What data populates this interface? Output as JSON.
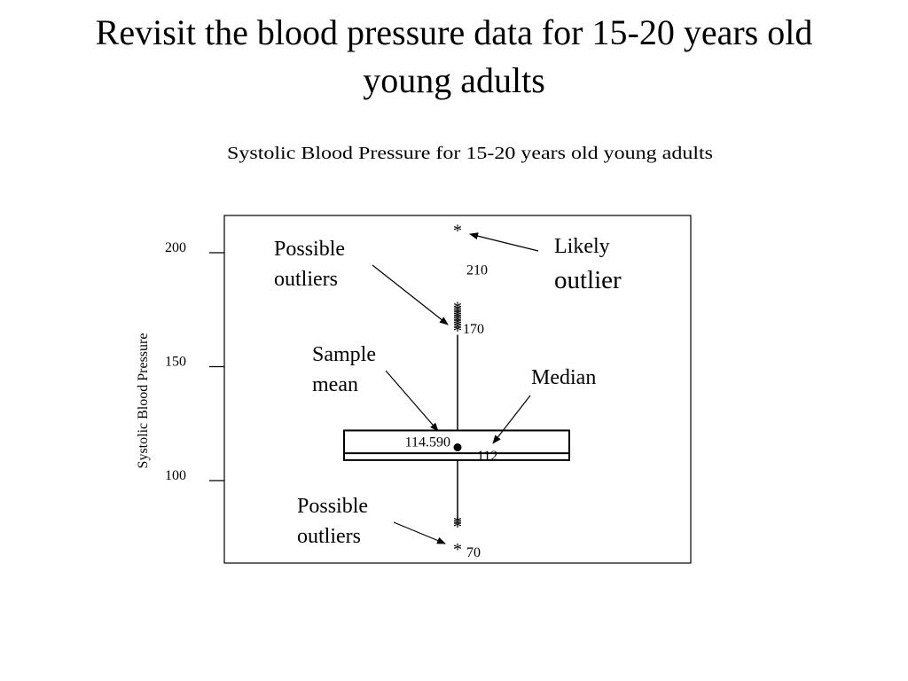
{
  "slide": {
    "title_line1": "Revisit the blood pressure data for 15-20 years old",
    "title_line2": "young adults"
  },
  "chart_data": {
    "type": "boxplot",
    "title": "Systolic Blood Pressure for 15-20 years old young adults",
    "ylabel": "Systolic Blood Pressure",
    "ylim": [
      70,
      210
    ],
    "yticks": [
      100,
      150,
      200
    ],
    "orientation": "vertical",
    "box": {
      "q1": 109,
      "median": 112,
      "q3": 122,
      "mean": 114.59,
      "whisker_low": 83,
      "whisker_high": 164
    },
    "outliers_high": [
      166,
      167,
      168,
      169,
      170,
      171,
      172,
      173,
      174,
      175,
      176
    ],
    "outliers_low": [
      80,
      81,
      82
    ],
    "likely_outlier": 210,
    "low_extreme": 70,
    "labels": {
      "max_value": "210",
      "high_cluster": "170",
      "low_value": "70",
      "mean_value": "114.590",
      "median_value": "112"
    },
    "annotations": {
      "possible_outliers_top": [
        "Possible",
        "outliers"
      ],
      "likely_outlier": [
        "Likely",
        "outlier"
      ],
      "sample_mean": [
        "Sample",
        "mean"
      ],
      "median": "Median",
      "possible_outliers_bottom": [
        "Possible",
        "outliers"
      ]
    }
  }
}
